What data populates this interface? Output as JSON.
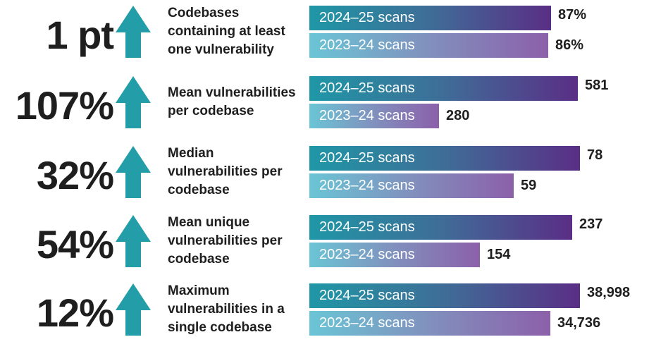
{
  "chart_data": {
    "type": "bar",
    "orientation": "horizontal",
    "title": "",
    "legend_labels": [
      "2024–25 scans",
      "2023–24 scans"
    ],
    "colors": {
      "current_start": "#1f97a6",
      "current_end": "#5a2e86",
      "previous_start": "#6ac5d5",
      "previous_end": "#8c60aa",
      "arrow": "#239ea8",
      "text": "#1e1e1e"
    },
    "rows": [
      {
        "change": "1 pt",
        "direction": "up",
        "metric": "Codebases containing at least one vulnerability",
        "current": {
          "label": "2024–25 scans",
          "value": 87,
          "display": "87%"
        },
        "previous": {
          "label": "2023–24 scans",
          "value": 86,
          "display": "86%"
        }
      },
      {
        "change": "107%",
        "direction": "up",
        "metric": "Mean vulnerabilities per codebase",
        "current": {
          "label": "2024–25 scans",
          "value": 581,
          "display": "581"
        },
        "previous": {
          "label": "2023–24 scans",
          "value": 280,
          "display": "280"
        }
      },
      {
        "change": "32%",
        "direction": "up",
        "metric": "Median vulnerabilities per codebase",
        "current": {
          "label": "2024–25 scans",
          "value": 78,
          "display": "78"
        },
        "previous": {
          "label": "2023–24 scans",
          "value": 59,
          "display": "59"
        }
      },
      {
        "change": "54%",
        "direction": "up",
        "metric": "Mean unique vulnerabilities per codebase",
        "current": {
          "label": "2024–25 scans",
          "value": 237,
          "display": "237"
        },
        "previous": {
          "label": "2023–24 scans",
          "value": 154,
          "display": "154"
        }
      },
      {
        "change": "12%",
        "direction": "up",
        "metric": "Maximum vulnerabilities in a single codebase",
        "current": {
          "label": "2024–25 scans",
          "value": 38998,
          "display": "38,998"
        },
        "previous": {
          "label": "2023–24 scans",
          "value": 34736,
          "display": "34,736"
        }
      }
    ]
  }
}
